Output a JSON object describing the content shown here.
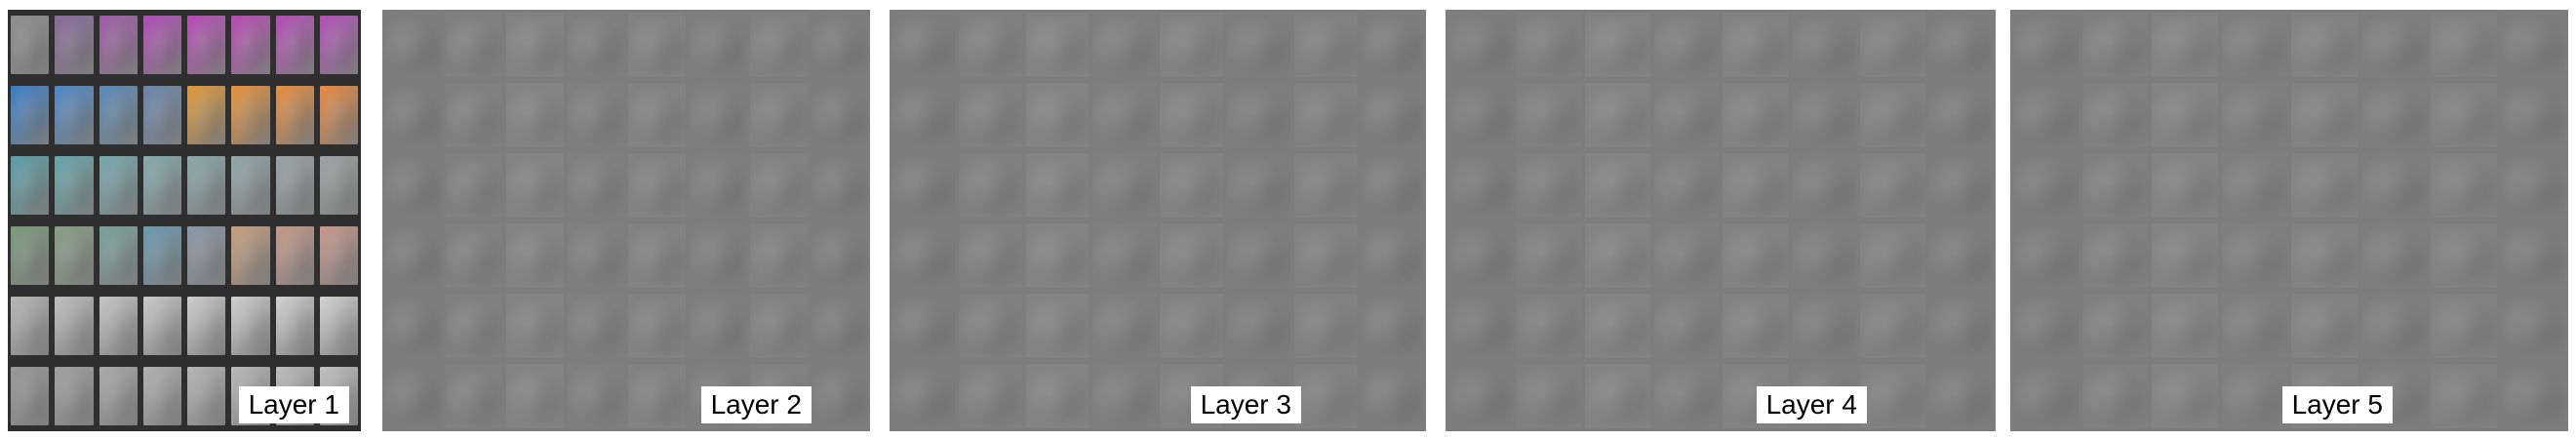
{
  "panels": [
    {
      "label": "Layer 1"
    },
    {
      "label": "Layer 2"
    },
    {
      "label": "Layer 3"
    },
    {
      "label": "Layer 4"
    },
    {
      "label": "Layer 5"
    }
  ]
}
